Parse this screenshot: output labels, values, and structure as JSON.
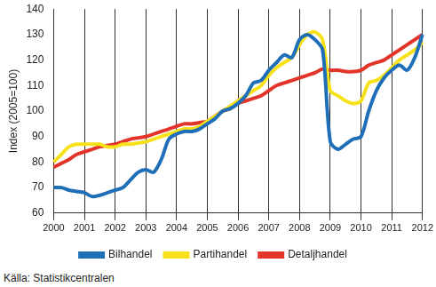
{
  "chart_data": {
    "type": "line",
    "y_label": "Index (2005=100)",
    "source": "Källa: Statistikcentralen",
    "categories": [
      "2000",
      null,
      null,
      null,
      "2001",
      null,
      null,
      null,
      "2002",
      null,
      null,
      null,
      "2003",
      null,
      null,
      null,
      "2004",
      null,
      null,
      null,
      "2005",
      null,
      null,
      null,
      "2006",
      null,
      null,
      null,
      "2007",
      null,
      null,
      null,
      "2008",
      null,
      null,
      null,
      "2009",
      null,
      null,
      null,
      "2010",
      null,
      null,
      null,
      "2011",
      null,
      null,
      null,
      "2012"
    ],
    "series": [
      {
        "name": "Bilhandel",
        "color": "#1f6fb8",
        "values": [
          70,
          70,
          69,
          68.5,
          68,
          66.5,
          67,
          68,
          69,
          70,
          73,
          76,
          77,
          76,
          81,
          89,
          91,
          92,
          92,
          93,
          95,
          97,
          100,
          101,
          103,
          106,
          111,
          112,
          116,
          119,
          122,
          121,
          128,
          130,
          128,
          124,
          88,
          85,
          87,
          89,
          90,
          100,
          108,
          113,
          116,
          118,
          116,
          121,
          130
        ]
      },
      {
        "name": "Partihandel",
        "color": "#f7e11b",
        "values": [
          80,
          83,
          86,
          87,
          87,
          87,
          87,
          86,
          86,
          87,
          87,
          87.5,
          88,
          89,
          90,
          91,
          92,
          93,
          93,
          94,
          96,
          98,
          100,
          102,
          104,
          106,
          108,
          110,
          114,
          117,
          119,
          121,
          126,
          130,
          131,
          128,
          108,
          106,
          104,
          103,
          104,
          111,
          112,
          114,
          117,
          120,
          122,
          124,
          127
        ]
      },
      {
        "name": "Detaljhandel",
        "color": "#e3342a",
        "values": [
          78,
          79.5,
          81,
          83,
          84,
          85,
          86,
          86.5,
          87,
          88,
          89,
          89.5,
          90,
          91,
          92,
          93,
          94,
          95,
          95,
          95.5,
          96,
          98,
          100,
          101,
          103,
          104,
          105,
          106,
          108,
          110,
          111,
          112,
          113,
          114,
          115,
          116.5,
          116,
          116,
          115.5,
          115.5,
          116,
          118,
          119,
          120,
          122,
          124,
          126,
          128,
          130
        ]
      }
    ],
    "ylim": [
      60,
      140
    ],
    "yticks": [
      60,
      70,
      80,
      90,
      100,
      110,
      120,
      130,
      140
    ],
    "grid": "x",
    "legend": "bottom"
  }
}
